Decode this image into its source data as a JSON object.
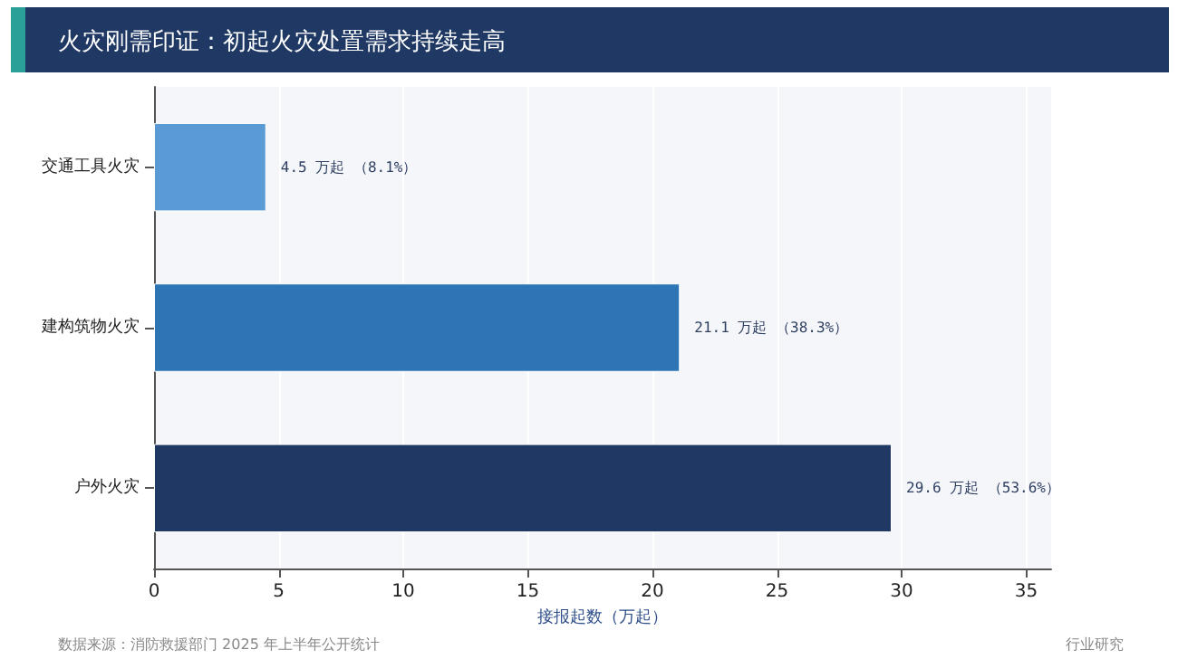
{
  "chart_data": {
    "type": "bar",
    "orientation": "horizontal",
    "title": "火灾刚需印证：初起火灾处置需求持续走高",
    "xlabel": "接报起数（万起）",
    "categories": [
      "交通工具火灾",
      "建构筑物火灾",
      "户外火灾"
    ],
    "values": [
      4.5,
      21.1,
      29.6
    ],
    "colors": [
      "#5b9bd5",
      "#2e75b6",
      "#1f3864"
    ],
    "value_labels": [
      "4.5 万起 （8.1%）",
      "21.1 万起 （38.3%）",
      "29.6 万起 （53.6%）"
    ],
    "xlim": [
      0,
      36
    ],
    "xticks": [
      0,
      5,
      10,
      15,
      20,
      25,
      30,
      35
    ],
    "grid": "x",
    "annotations": [
      "数据来源：消防救援部门 2025 年上半年公开统计",
      "行业研究"
    ]
  }
}
